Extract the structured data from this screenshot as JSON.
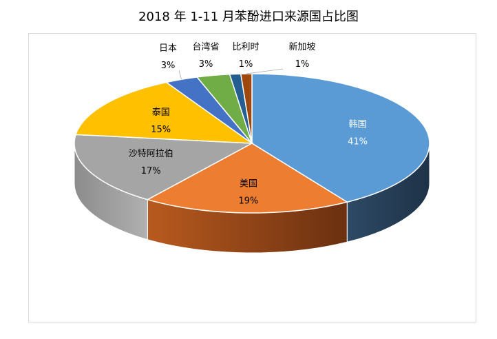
{
  "chart_data": {
    "type": "pie",
    "title": "2018 年 1-11 月苯酚进口来源国占比图",
    "slices": [
      {
        "label": "韩国",
        "value": 41,
        "pct_text": "41%",
        "color": "#5B9BD5",
        "side": "#22384E",
        "label_color": "#ffffff"
      },
      {
        "label": "美国",
        "value": 19,
        "pct_text": "19%",
        "color": "#ED7D31",
        "side": "#7A3A12",
        "label_color": "#000000"
      },
      {
        "label": "沙特阿拉伯",
        "value": 17,
        "pct_text": "17%",
        "color": "#A5A5A5",
        "side": "#6E6E6E",
        "label_color": "#000000"
      },
      {
        "label": "泰国",
        "value": 15,
        "pct_text": "15%",
        "color": "#FFC000",
        "side": "#9C7600",
        "label_color": "#000000"
      },
      {
        "label": "日本",
        "value": 3,
        "pct_text": "3%",
        "color": "#4472C4",
        "side": "#2A4780",
        "label_color": "#000000"
      },
      {
        "label": "台湾省",
        "value": 3,
        "pct_text": "3%",
        "color": "#70AD47",
        "side": "#446A2B",
        "label_color": "#000000"
      },
      {
        "label": "比利时",
        "value": 1,
        "pct_text": "1%",
        "color": "#255E91",
        "side": "#163A5A",
        "label_color": "#000000"
      },
      {
        "label": "新加坡",
        "value": 1,
        "pct_text": "1%",
        "color": "#9E480E",
        "side": "#5E2A08",
        "label_color": "#000000"
      }
    ]
  }
}
